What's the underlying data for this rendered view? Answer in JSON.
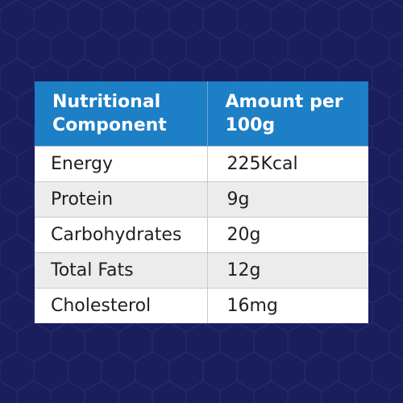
{
  "table": {
    "headers": [
      "Nutritional Component",
      "Amount per 100g"
    ],
    "rows": [
      [
        "Energy",
        "225Kcal"
      ],
      [
        "Protein",
        "9g"
      ],
      [
        "Carbohydrates",
        "20g"
      ],
      [
        "Total Fats",
        "12g"
      ],
      [
        "Cholesterol",
        "16mg"
      ]
    ]
  },
  "colors": {
    "background": "#1a1e5c",
    "header": "#1d7fc6",
    "row_alt": "#ececec",
    "row": "#ffffff"
  }
}
